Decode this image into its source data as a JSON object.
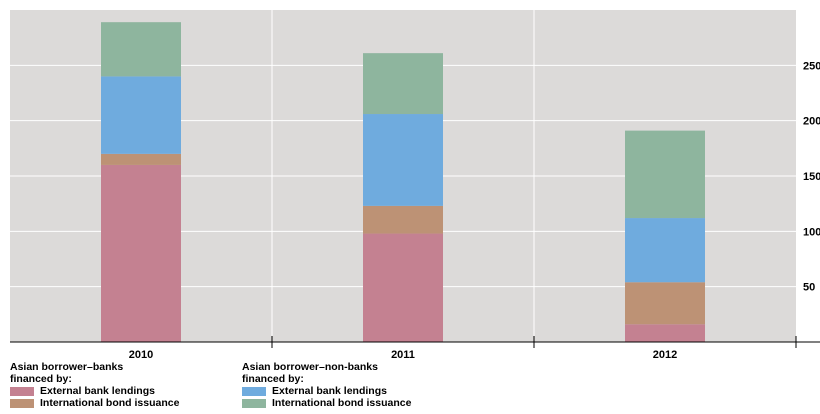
{
  "chart_data": {
    "type": "bar",
    "stacked": true,
    "categories": [
      "2010",
      "2011",
      "2012"
    ],
    "series": [
      {
        "key": "banks_external_bank_lendings",
        "group": "banks",
        "name": "External bank lendings",
        "color": "#c48191",
        "values": [
          160,
          98,
          16
        ]
      },
      {
        "key": "banks_international_bond_issuance",
        "group": "banks",
        "name": "International bond issuance",
        "color": "#bd9275",
        "values": [
          10,
          25,
          38
        ]
      },
      {
        "key": "nonbanks_external_bank_lendings",
        "group": "nonbanks",
        "name": "External bank lendings",
        "color": "#6fabde",
        "values": [
          70,
          83,
          58
        ]
      },
      {
        "key": "nonbanks_international_bond_issuance",
        "group": "nonbanks",
        "name": "International bond issuance",
        "color": "#8eb59e",
        "values": [
          49,
          55,
          79
        ]
      }
    ],
    "y_ticks": [
      "50",
      "100",
      "150",
      "200",
      "250"
    ],
    "ylim": [
      0,
      300
    ],
    "y_axis_side": "right",
    "grid": true,
    "legend_position": "bottom-left",
    "legend_groups": [
      {
        "key": "banks",
        "title_line1": "Asian borrower–banks",
        "title_line2": "financed by:"
      },
      {
        "key": "nonbanks",
        "title_line1": "Asian borrower–non-banks",
        "title_line2": "financed by:"
      }
    ],
    "plot_background": "#dcdad9",
    "gridline_color": "#ffffff"
  }
}
